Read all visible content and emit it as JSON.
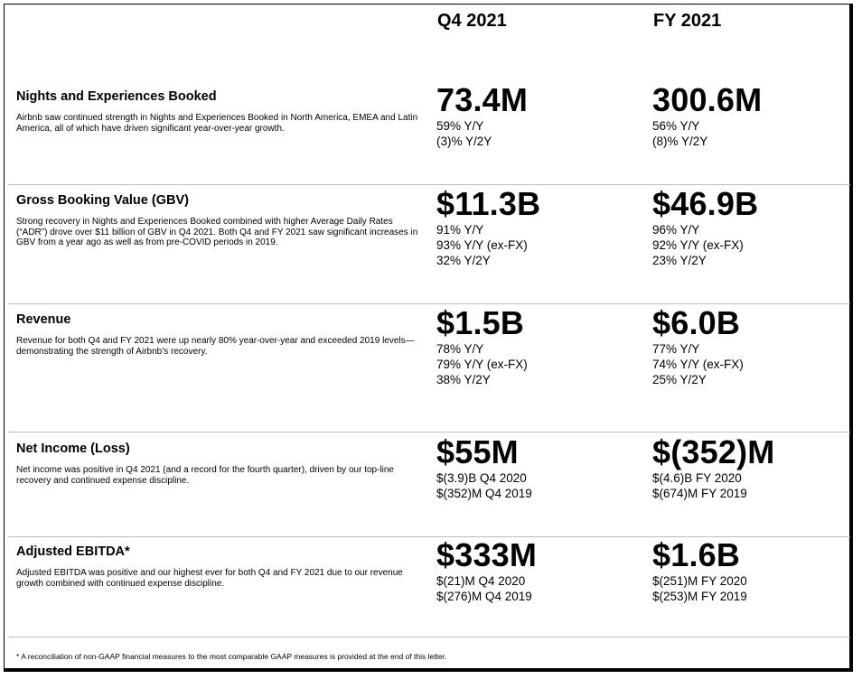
{
  "columns": {
    "q4": "Q4 2021",
    "fy": "FY 2021"
  },
  "rows": [
    {
      "title": "Nights and Experiences Booked",
      "description": "Airbnb saw continued strength in Nights and Experiences Booked in North America, EMEA and Latin America, all of which have driven significant year-over-year growth.",
      "q4": {
        "value": "73.4M",
        "details": [
          "59% Y/Y",
          "(3)% Y/2Y"
        ]
      },
      "fy": {
        "value": "300.6M",
        "details": [
          "56% Y/Y",
          "(8)% Y/2Y"
        ]
      }
    },
    {
      "title": "Gross Booking Value (GBV)",
      "description": "Strong recovery in Nights and Experiences Booked combined with higher Average Daily Rates (“ADR”) drove over $11 billion of GBV in Q4 2021. Both Q4 and FY 2021 saw significant increases in GBV from a year ago as well as from pre-COVID periods in 2019.",
      "q4": {
        "value": "$11.3B",
        "details": [
          "91% Y/Y",
          "93% Y/Y (ex-FX)",
          "32% Y/2Y"
        ]
      },
      "fy": {
        "value": "$46.9B",
        "details": [
          "96% Y/Y",
          "92% Y/Y (ex-FX)",
          "23% Y/2Y"
        ]
      }
    },
    {
      "title": "Revenue",
      "description": "Revenue for both Q4 and FY 2021 were up nearly 80% year-over-year and exceeded 2019 levels— demonstrating the strength of Airbnb’s recovery.",
      "q4": {
        "value": "$1.5B",
        "details": [
          "78% Y/Y",
          "79% Y/Y (ex-FX)",
          "38% Y/2Y"
        ]
      },
      "fy": {
        "value": "$6.0B",
        "details": [
          "77% Y/Y",
          "74% Y/Y (ex-FX)",
          "25% Y/2Y"
        ]
      }
    },
    {
      "title": "Net Income (Loss)",
      "description": "Net income was positive in Q4 2021 (and a record for the fourth quarter), driven by our top-line recovery and continued expense discipline.",
      "q4": {
        "value": "$55M",
        "details": [
          "$(3.9)B Q4 2020",
          "$(352)M Q4 2019"
        ]
      },
      "fy": {
        "value": "$(352)M",
        "details": [
          "$(4.6)B FY 2020",
          "$(674)M FY 2019"
        ]
      }
    },
    {
      "title": "Adjusted EBITDA*",
      "description": "Adjusted EBITDA was positive and our highest ever for both Q4 and FY 2021 due to our revenue growth combined with continued expense discipline.",
      "q4": {
        "value": "$333M",
        "details": [
          "$(21)M Q4 2020",
          "$(276)M Q4 2019"
        ]
      },
      "fy": {
        "value": "$1.6B",
        "details": [
          "$(251)M FY 2020",
          "$(253)M FY 2019"
        ]
      }
    }
  ],
  "footnote": "* A reconciliation of non-GAAP financial measures to the most comparable GAAP measures is provided at the end of this letter."
}
